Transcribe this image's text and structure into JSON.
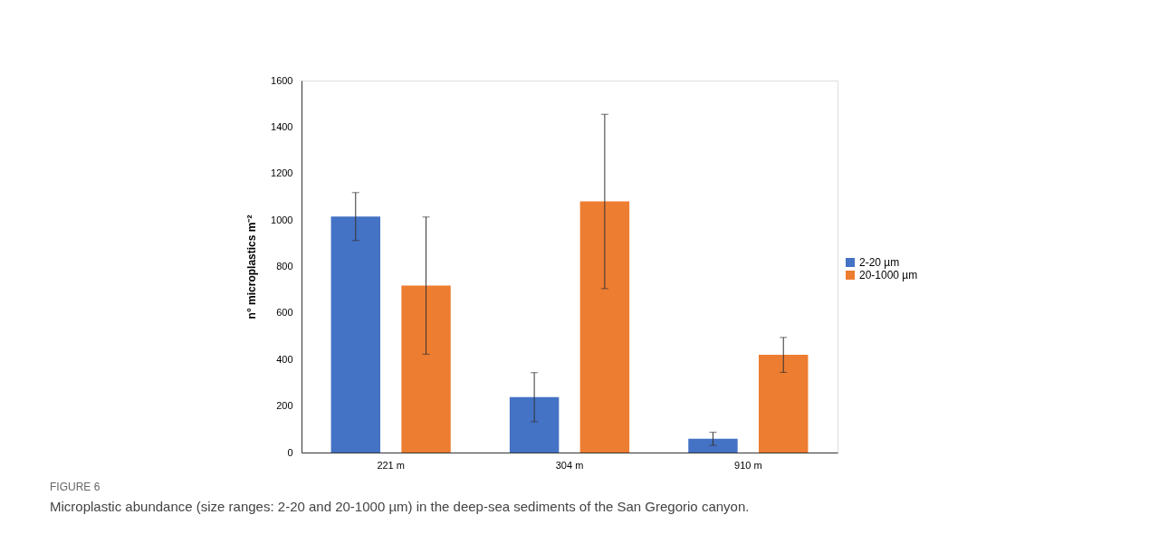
{
  "chart_data": {
    "type": "bar",
    "title": "FIGURE 6",
    "subtitle": "Microplastic abundance (size ranges: 2-20 and 20-1000 µm) in the deep-sea sediments of the San Gregorio canyon.",
    "ylabel": "n° microplastics m⁻²",
    "categories": [
      "221 m",
      "304 m",
      "910 m"
    ],
    "series": [
      {
        "name": "2-20 µm",
        "color": "#4472c4",
        "values": [
          1015,
          238,
          59
        ],
        "errors": [
          103,
          106,
          28
        ]
      },
      {
        "name": "20-1000 µm",
        "color": "#ed7d31",
        "values": [
          718,
          1080,
          420
        ],
        "errors": [
          295,
          375,
          75
        ]
      }
    ],
    "ylim": [
      0,
      1600
    ],
    "yticks": [
      0,
      200,
      400,
      600,
      800,
      1000,
      1200,
      1400,
      1600
    ],
    "grid": false,
    "legend": "right"
  }
}
